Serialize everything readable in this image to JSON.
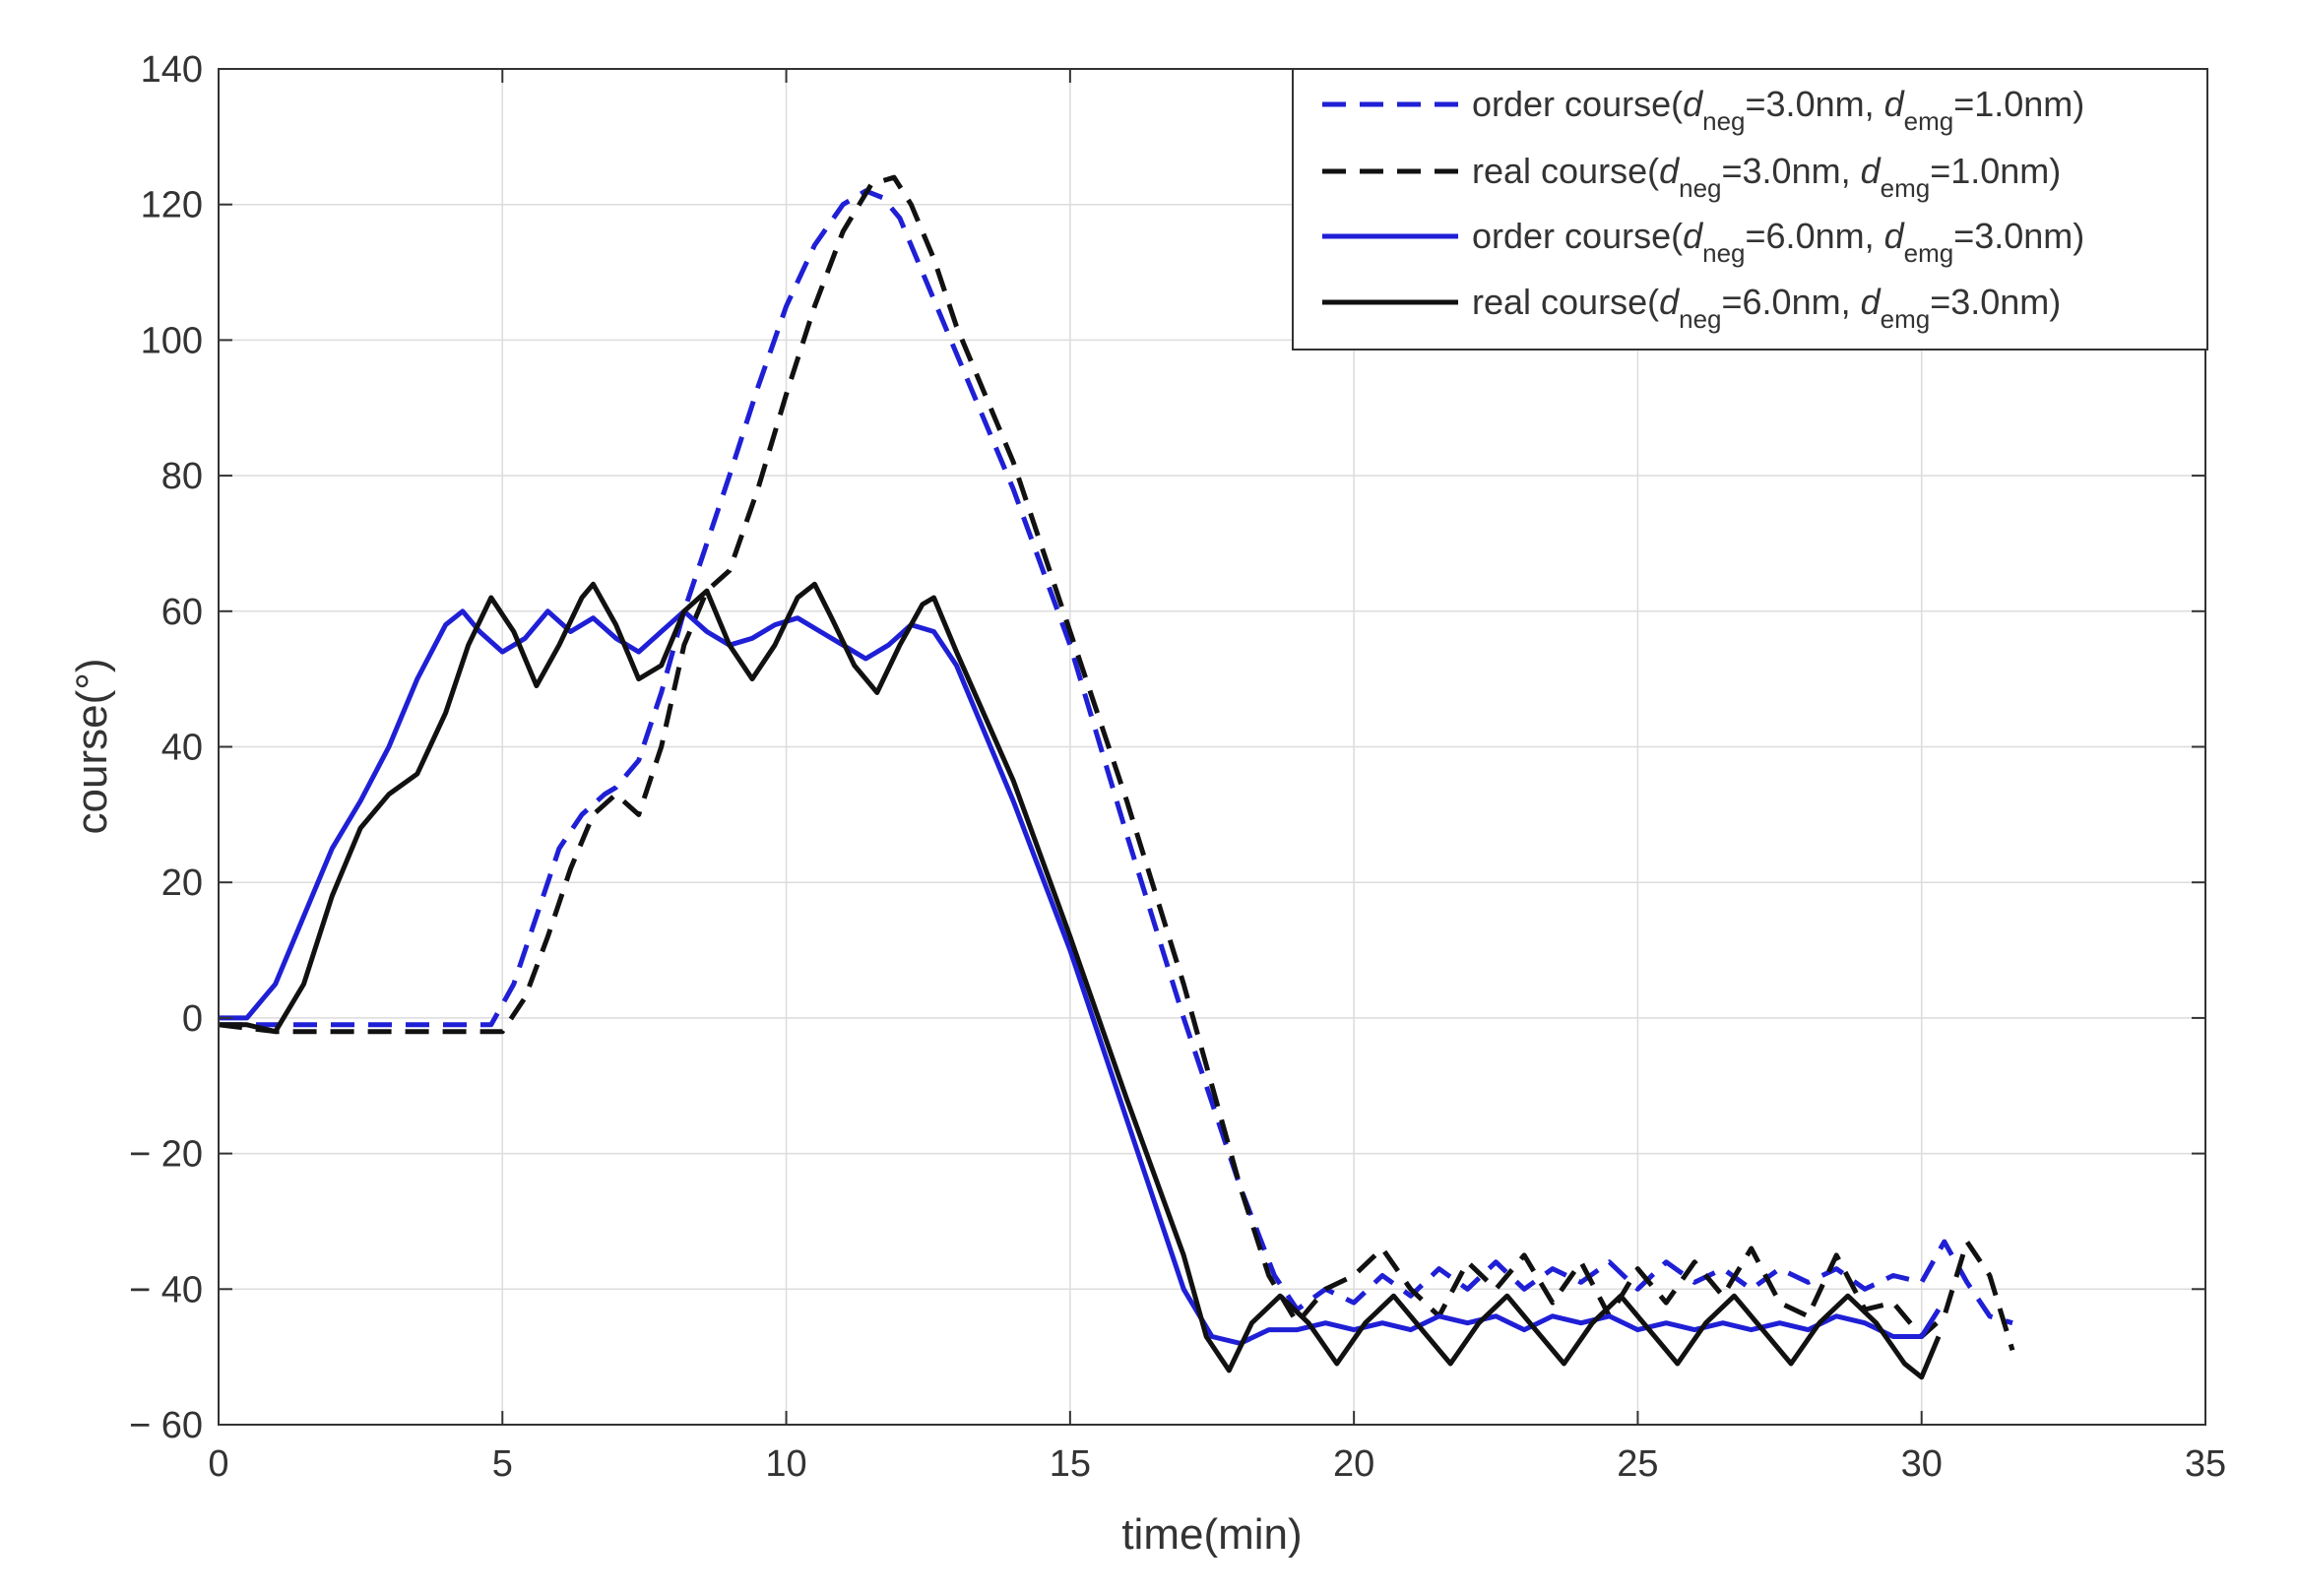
{
  "chart_data": {
    "type": "line",
    "title": "",
    "xlabel": "time(min)",
    "ylabel": "course(°)",
    "xlim": [
      0,
      35
    ],
    "ylim": [
      -60,
      140
    ],
    "xticks": [
      0,
      5,
      10,
      15,
      20,
      25,
      30,
      35
    ],
    "xtick_labels": [
      "0",
      "5",
      "10",
      "15",
      "20",
      "25",
      "30",
      "35"
    ],
    "yticks": [
      -60,
      -40,
      -20,
      0,
      20,
      40,
      60,
      80,
      100,
      120,
      140
    ],
    "ytick_labels": [
      "− 60",
      "− 40",
      "− 20",
      "0",
      "20",
      "40",
      "60",
      "80",
      "100",
      "120",
      "140"
    ],
    "grid": true,
    "legend_position": "top-right",
    "series": [
      {
        "name": "order course(d_neg=3.0nm, d_emg=1.0nm)",
        "legend": {
          "pre": "order course(",
          "d1": "d",
          "s1": "neg",
          "mid": "=3.0nm, ",
          "d2": "d",
          "s2": "emg",
          "post": "=1.0nm)"
        },
        "color": "#1f1fd6",
        "style": "dashed",
        "x": [
          0,
          1,
          2,
          3,
          4,
          4.8,
          5.2,
          5.6,
          6.0,
          6.4,
          6.8,
          7.0,
          7.4,
          7.8,
          8.2,
          8.6,
          9.0,
          9.5,
          10.0,
          10.5,
          11.0,
          11.4,
          11.7,
          12.0,
          12.4,
          13.0,
          14.0,
          15.0,
          16.0,
          17.0,
          18.0,
          18.6,
          19.0,
          19.5,
          20.0,
          20.5,
          21.0,
          21.5,
          22.0,
          22.5,
          23.0,
          23.5,
          24.0,
          24.5,
          25.0,
          25.5,
          26.0,
          26.5,
          27.0,
          27.5,
          28.0,
          28.5,
          29.0,
          29.5,
          30.0,
          30.4,
          30.8,
          31.2,
          31.6
        ],
        "y": [
          -1,
          -1,
          -1,
          -1,
          -1,
          -1,
          5,
          15,
          25,
          30,
          33,
          34,
          38,
          48,
          60,
          70,
          80,
          93,
          105,
          114,
          120,
          122,
          121,
          118,
          110,
          98,
          78,
          55,
          27,
          0,
          -25,
          -38,
          -43,
          -40,
          -42,
          -38,
          -41,
          -37,
          -40,
          -36,
          -40,
          -37,
          -39,
          -36,
          -40,
          -36,
          -39,
          -37,
          -40,
          -37,
          -39,
          -37,
          -40,
          -38,
          -39,
          -33,
          -39,
          -44,
          -45
        ]
      },
      {
        "name": "real course(d_neg=3.0nm, d_emg=1.0nm)",
        "legend": {
          "pre": "real course(",
          "d1": "d",
          "s1": "neg",
          "mid": "=3.0nm, ",
          "d2": "d",
          "s2": "emg",
          "post": "=1.0nm)"
        },
        "color": "#111111",
        "style": "dashed",
        "x": [
          0,
          1,
          2,
          3,
          4,
          5,
          5.4,
          5.8,
          6.2,
          6.6,
          7.0,
          7.4,
          7.8,
          8.2,
          8.6,
          9.0,
          9.5,
          10.0,
          10.5,
          11.0,
          11.5,
          11.9,
          12.2,
          12.6,
          13.0,
          14.0,
          15.0,
          16.0,
          17.0,
          18.0,
          18.5,
          19.0,
          19.5,
          20.0,
          20.5,
          21.0,
          21.5,
          22.0,
          22.5,
          23.0,
          23.5,
          24.0,
          24.5,
          25.0,
          25.5,
          26.0,
          26.5,
          27.0,
          27.5,
          28.0,
          28.5,
          29.0,
          29.5,
          30.0,
          30.4,
          30.8,
          31.2,
          31.6
        ],
        "y": [
          -1,
          -2,
          -2,
          -2,
          -2,
          -2,
          3,
          12,
          22,
          30,
          33,
          30,
          40,
          55,
          63,
          66,
          78,
          92,
          105,
          116,
          123,
          124,
          120,
          112,
          102,
          82,
          57,
          32,
          5,
          -25,
          -38,
          -45,
          -40,
          -38,
          -34,
          -40,
          -44,
          -36,
          -40,
          -35,
          -42,
          -36,
          -44,
          -37,
          -42,
          -36,
          -41,
          -34,
          -42,
          -44,
          -35,
          -43,
          -42,
          -47,
          -44,
          -33,
          -38,
          -49
        ]
      },
      {
        "name": "order course(d_neg=6.0nm, d_emg=3.0nm)",
        "legend": {
          "pre": "order course(",
          "d1": "d",
          "s1": "neg",
          "mid": "=6.0nm, ",
          "d2": "d",
          "s2": "emg",
          "post": "=3.0nm)"
        },
        "color": "#1f1fd6",
        "style": "solid",
        "x": [
          0,
          0.5,
          0.8,
          1.0,
          1.5,
          2.0,
          2.5,
          3.0,
          3.5,
          4.0,
          4.3,
          4.6,
          5.0,
          5.4,
          5.8,
          6.2,
          6.6,
          7.0,
          7.4,
          7.8,
          8.2,
          8.6,
          9.0,
          9.4,
          9.8,
          10.2,
          10.6,
          11.0,
          11.4,
          11.8,
          12.2,
          12.6,
          13.0,
          14.0,
          15.0,
          16.0,
          17.0,
          17.5,
          18.0,
          18.5,
          19.0,
          19.5,
          20.0,
          20.5,
          21.0,
          21.5,
          22.0,
          22.5,
          23.0,
          23.5,
          24.0,
          24.5,
          25.0,
          25.5,
          26.0,
          26.5,
          27.0,
          27.5,
          28.0,
          28.5,
          29.0,
          29.5,
          30.0,
          30.3
        ],
        "y": [
          0,
          0,
          3,
          5,
          15,
          25,
          32,
          40,
          50,
          58,
          60,
          57,
          54,
          56,
          60,
          57,
          59,
          56,
          54,
          57,
          60,
          57,
          55,
          56,
          58,
          59,
          57,
          55,
          53,
          55,
          58,
          57,
          52,
          32,
          10,
          -15,
          -40,
          -47,
          -48,
          -46,
          -46,
          -45,
          -46,
          -45,
          -46,
          -44,
          -45,
          -44,
          -46,
          -44,
          -45,
          -44,
          -46,
          -45,
          -46,
          -45,
          -46,
          -45,
          -46,
          -44,
          -45,
          -47,
          -47,
          -43
        ]
      },
      {
        "name": "real course(d_neg=6.0nm, d_emg=3.0nm)",
        "legend": {
          "pre": "real course(",
          "d1": "d",
          "s1": "neg",
          "mid": "=6.0nm, ",
          "d2": "d",
          "s2": "emg",
          "post": "=3.0nm)"
        },
        "color": "#111111",
        "style": "solid",
        "x": [
          0,
          0.5,
          1.0,
          1.5,
          2.0,
          2.5,
          3.0,
          3.5,
          4.0,
          4.4,
          4.8,
          5.2,
          5.6,
          6.0,
          6.4,
          6.6,
          7.0,
          7.4,
          7.8,
          8.2,
          8.6,
          9.0,
          9.4,
          9.8,
          10.2,
          10.5,
          10.8,
          11.2,
          11.6,
          12.0,
          12.4,
          12.6,
          13.0,
          14.0,
          15.0,
          16.0,
          17.0,
          17.4,
          17.8,
          18.2,
          18.7,
          19.2,
          19.7,
          20.2,
          20.7,
          21.2,
          21.7,
          22.2,
          22.7,
          23.2,
          23.7,
          24.2,
          24.7,
          25.2,
          25.7,
          26.2,
          26.7,
          27.2,
          27.7,
          28.2,
          28.7,
          29.2,
          29.7,
          30.0,
          30.3
        ],
        "y": [
          -1,
          -1,
          -2,
          5,
          18,
          28,
          33,
          36,
          45,
          55,
          62,
          57,
          49,
          55,
          62,
          64,
          58,
          50,
          52,
          60,
          63,
          55,
          50,
          55,
          62,
          64,
          59,
          52,
          48,
          55,
          61,
          62,
          54,
          35,
          12,
          -12,
          -35,
          -47,
          -52,
          -45,
          -41,
          -45,
          -51,
          -45,
          -41,
          -46,
          -51,
          -45,
          -41,
          -46,
          -51,
          -45,
          -41,
          -46,
          -51,
          -45,
          -41,
          -46,
          -51,
          -45,
          -41,
          -45,
          -51,
          -53,
          -47
        ]
      }
    ]
  }
}
